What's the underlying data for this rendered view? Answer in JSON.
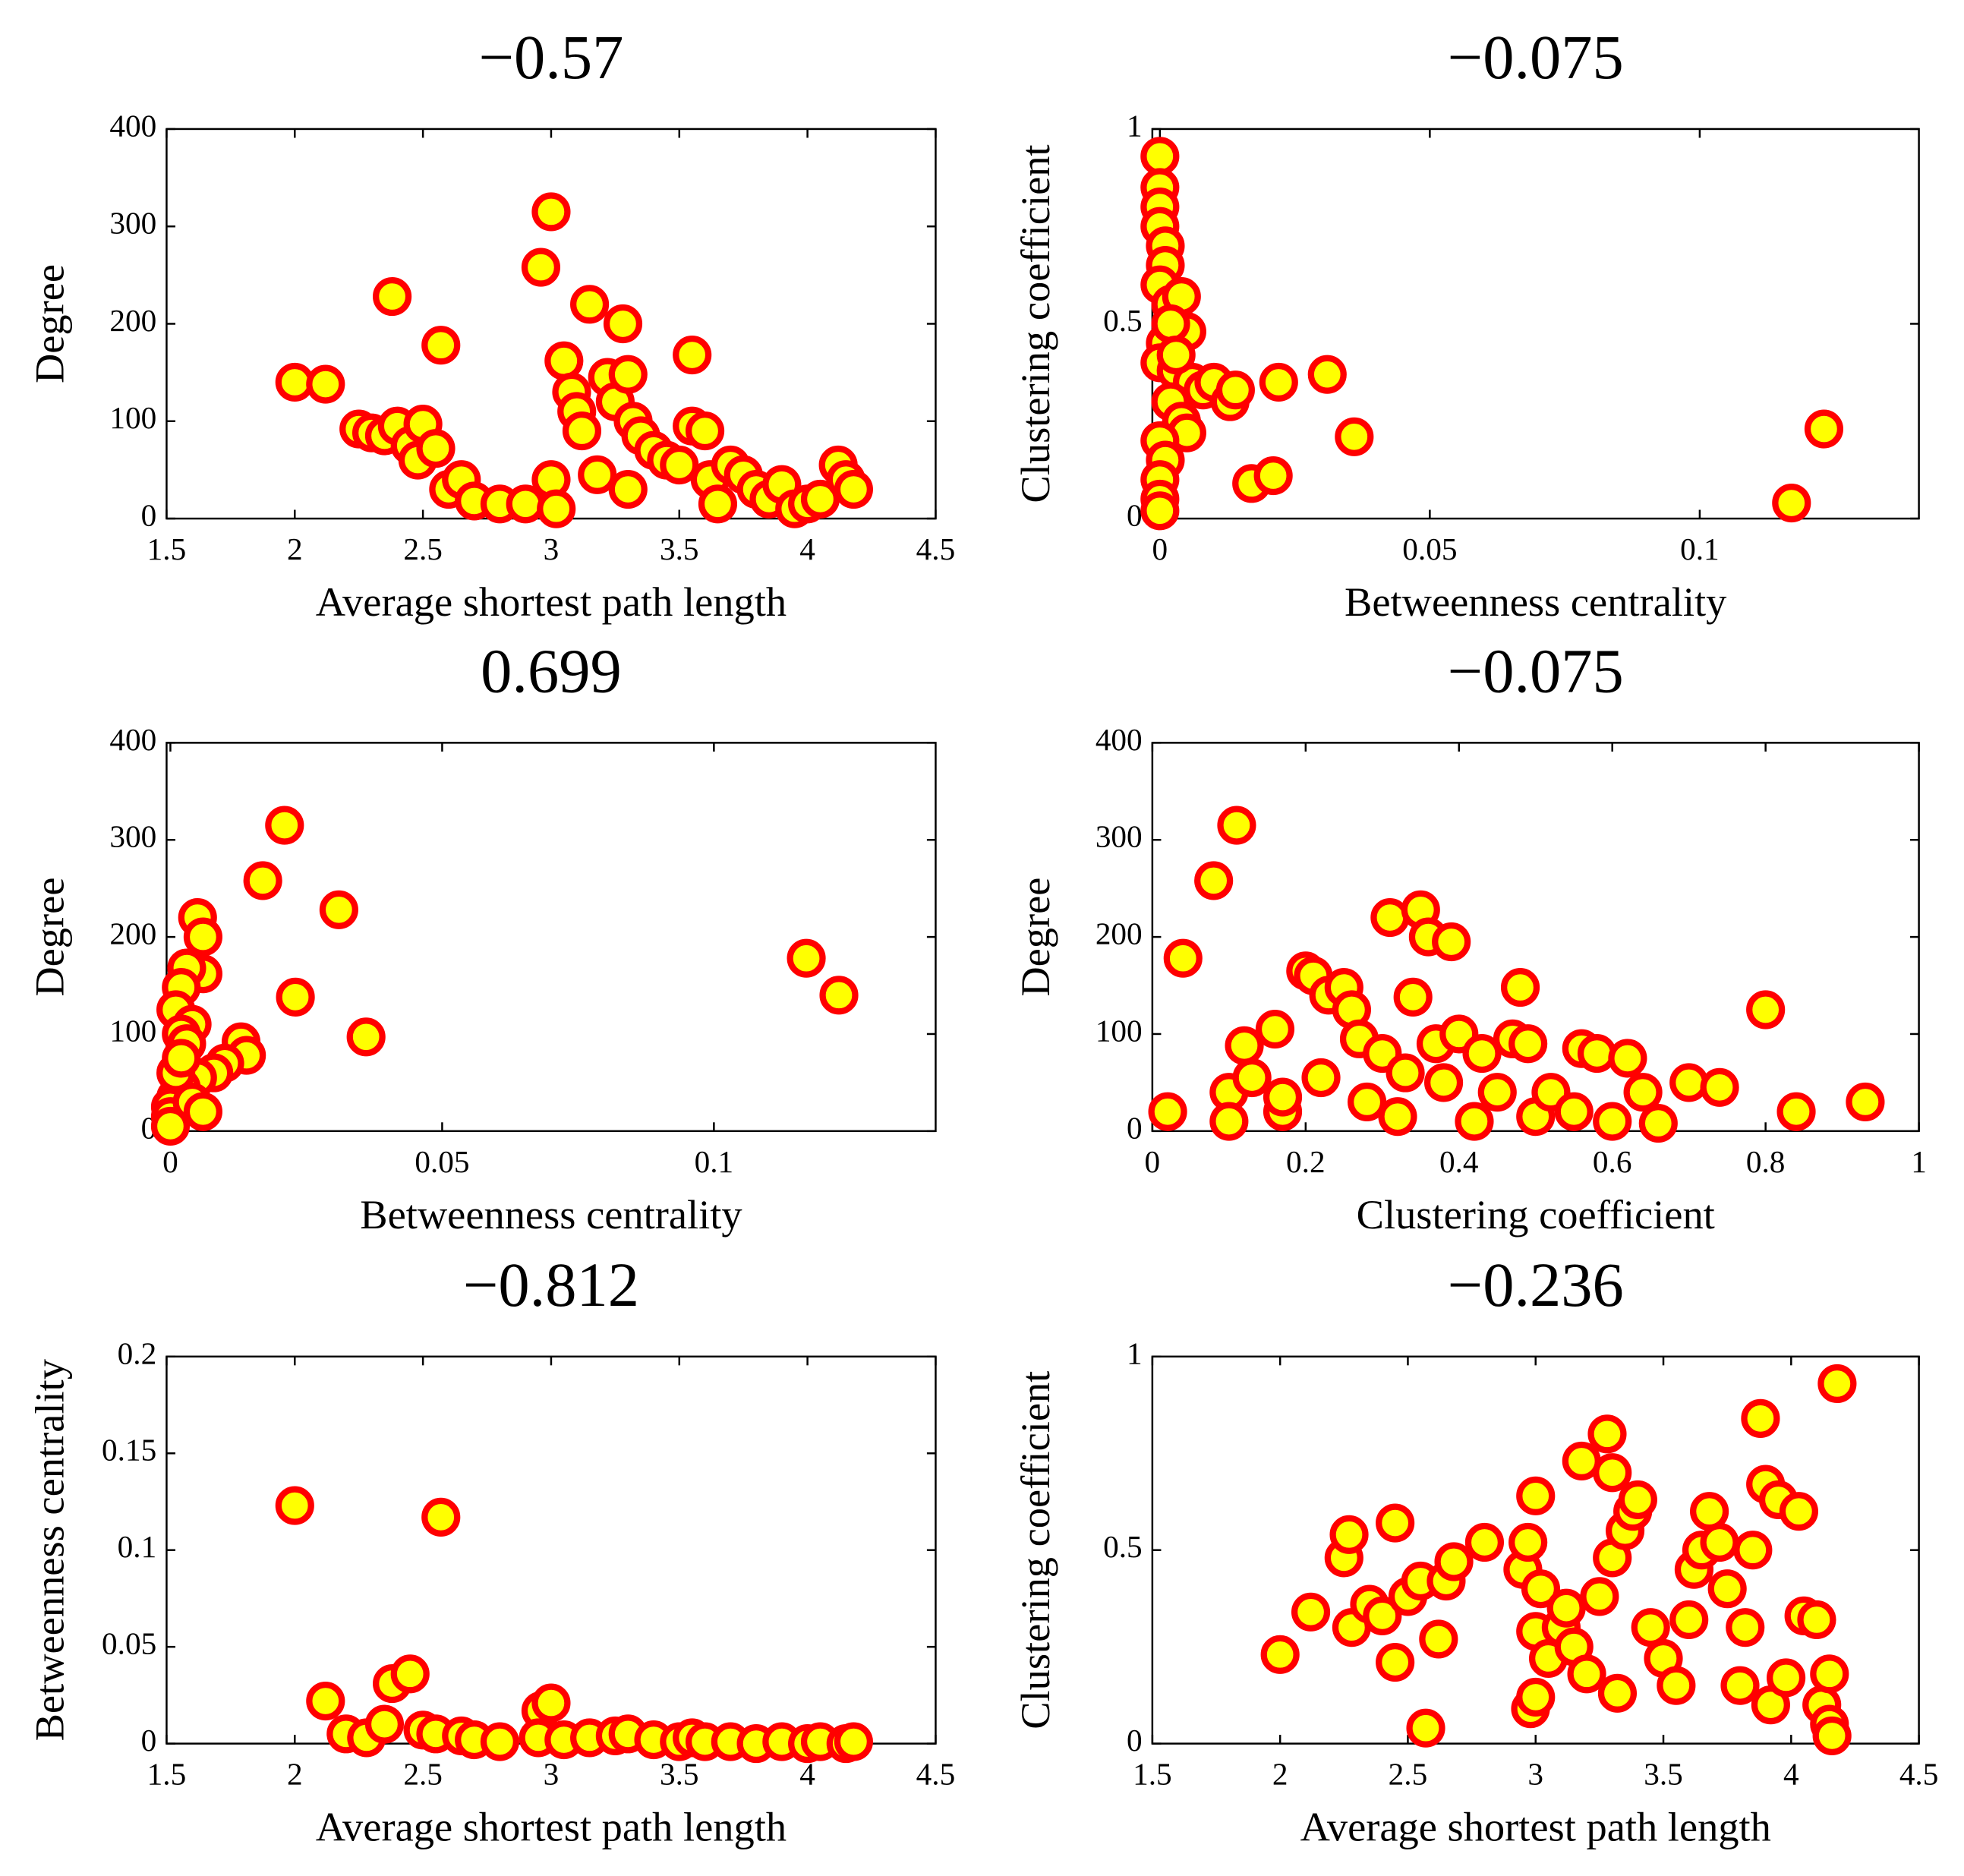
{
  "chart_data": [
    {
      "type": "scatter",
      "title": "−0.57",
      "x_label": "Average shortest path length",
      "y_label": "Degree",
      "marker_color": "#ffff00",
      "edge_color": "#ff0000",
      "xlim": [
        1.5,
        4.5
      ],
      "xticks": [
        1.5,
        2,
        2.5,
        3,
        3.5,
        4,
        4.5
      ],
      "ylim": [
        0,
        400
      ],
      "yticks": [
        0,
        100,
        200,
        300,
        400
      ],
      "x": [
        2.0,
        2.12,
        2.38,
        2.57,
        2.25,
        2.3,
        2.35,
        2.4,
        2.45,
        2.5,
        2.48,
        2.55,
        2.6,
        2.65,
        2.7,
        2.8,
        2.9,
        2.96,
        3.0,
        3.0,
        3.02,
        3.05,
        3.08,
        3.1,
        3.12,
        3.15,
        3.18,
        3.22,
        3.25,
        3.28,
        3.3,
        3.3,
        3.32,
        3.35,
        3.4,
        3.45,
        3.5,
        3.55,
        3.55,
        3.6,
        3.62,
        3.65,
        3.7,
        3.75,
        3.8,
        3.85,
        3.9,
        3.95,
        4.0,
        4.05,
        4.12,
        4.15,
        4.18
      ],
      "values": [
        140,
        138,
        228,
        178,
        92,
        88,
        85,
        95,
        75,
        97,
        60,
        72,
        30,
        40,
        18,
        15,
        15,
        258,
        315,
        40,
        10,
        162,
        130,
        110,
        90,
        220,
        45,
        145,
        120,
        200,
        148,
        30,
        100,
        85,
        70,
        60,
        55,
        168,
        95,
        90,
        40,
        15,
        55,
        45,
        30,
        20,
        35,
        10,
        15,
        20,
        55,
        40,
        30
      ]
    },
    {
      "type": "scatter",
      "title": "−0.075",
      "x_label": "Betweenness centrality",
      "y_label": "Clustering coefficient",
      "marker_color": "#ffff00",
      "edge_color": "#ff0000",
      "xlim": [
        -0.0014,
        0.1406
      ],
      "xticks": [
        0,
        0.05,
        0.1
      ],
      "ylim": [
        0,
        1
      ],
      "yticks": [
        0,
        0.5,
        1
      ],
      "x": [
        0,
        0,
        0,
        0,
        0.001,
        0.001,
        0,
        0.002,
        0.004,
        0.005,
        0.001,
        0,
        0.003,
        0.006,
        0.008,
        0.01,
        0.013,
        0.014,
        0.002,
        0.004,
        0.005,
        0,
        0.001,
        0,
        0,
        0,
        0.017,
        0.021,
        0.022,
        0.031,
        0.036,
        0.117,
        0.123,
        0.002,
        0.003
      ],
      "values": [
        0.93,
        0.85,
        0.8,
        0.75,
        0.7,
        0.65,
        0.6,
        0.55,
        0.57,
        0.48,
        0.45,
        0.4,
        0.38,
        0.35,
        0.33,
        0.35,
        0.3,
        0.33,
        0.3,
        0.25,
        0.22,
        0.2,
        0.15,
        0.1,
        0.05,
        0.02,
        0.09,
        0.11,
        0.35,
        0.37,
        0.21,
        0.04,
        0.23,
        0.5,
        0.42
      ]
    },
    {
      "type": "scatter",
      "title": "0.699",
      "x_label": "Betweenness centrality",
      "y_label": "Degree",
      "marker_color": "#ffff00",
      "edge_color": "#ff0000",
      "xlim": [
        -0.0007,
        0.1408
      ],
      "xticks": [
        0,
        0.05,
        0.1
      ],
      "ylim": [
        0,
        400
      ],
      "yticks": [
        0,
        100,
        200,
        300,
        400
      ],
      "x": [
        0.021,
        0.017,
        0.031,
        0.023,
        0.036,
        0.117,
        0.123,
        0.005,
        0.006,
        0.006,
        0.003,
        0.002,
        0.001,
        0.004,
        0.002,
        0.003,
        0.013,
        0.014,
        0.01,
        0.008,
        0.005,
        0.002,
        0.001,
        0,
        0,
        0,
        0.001,
        0.004,
        0.002,
        0.006
      ],
      "values": [
        315,
        258,
        228,
        138,
        97,
        178,
        140,
        220,
        200,
        162,
        168,
        148,
        125,
        110,
        100,
        90,
        92,
        78,
        70,
        60,
        55,
        45,
        35,
        25,
        15,
        5,
        60,
        30,
        75,
        20
      ]
    },
    {
      "type": "scatter",
      "title": "−0.075",
      "x_label": "Clustering coefficient",
      "y_label": "Degree",
      "marker_color": "#ffff00",
      "edge_color": "#ff0000",
      "xlim": [
        0,
        1
      ],
      "xticks": [
        0,
        0.2,
        0.4,
        0.6,
        0.8,
        1
      ],
      "ylim": [
        0,
        400
      ],
      "yticks": [
        0,
        100,
        200,
        300,
        400
      ],
      "x": [
        0.02,
        0.04,
        0.08,
        0.11,
        0.1,
        0.1,
        0.12,
        0.13,
        0.16,
        0.17,
        0.17,
        0.2,
        0.21,
        0.22,
        0.23,
        0.25,
        0.26,
        0.27,
        0.28,
        0.3,
        0.31,
        0.32,
        0.33,
        0.34,
        0.35,
        0.36,
        0.37,
        0.38,
        0.39,
        0.4,
        0.42,
        0.43,
        0.45,
        0.47,
        0.48,
        0.49,
        0.5,
        0.52,
        0.55,
        0.56,
        0.58,
        0.6,
        0.62,
        0.64,
        0.66,
        0.7,
        0.74,
        0.8,
        0.84,
        0.93
      ],
      "values": [
        20,
        178,
        258,
        315,
        40,
        10,
        88,
        55,
        105,
        20,
        35,
        165,
        160,
        55,
        140,
        148,
        125,
        95,
        30,
        80,
        220,
        15,
        60,
        138,
        228,
        200,
        90,
        50,
        195,
        100,
        10,
        80,
        40,
        95,
        148,
        90,
        15,
        40,
        20,
        85,
        80,
        10,
        75,
        40,
        8,
        50,
        45,
        125,
        20,
        30
      ]
    },
    {
      "type": "scatter",
      "title": "−0.812",
      "x_label": "Average shortest path length",
      "y_label": "Betweenness centrality",
      "marker_color": "#ffff00",
      "edge_color": "#ff0000",
      "xlim": [
        1.5,
        4.5
      ],
      "xticks": [
        1.5,
        2,
        2.5,
        3,
        3.5,
        4,
        4.5
      ],
      "ylim": [
        0,
        0.2
      ],
      "yticks": [
        0,
        0.05,
        0.1,
        0.15,
        0.2
      ],
      "x": [
        2.0,
        2.57,
        2.12,
        2.38,
        2.45,
        2.2,
        2.28,
        2.35,
        2.5,
        2.55,
        2.65,
        2.7,
        2.8,
        2.96,
        3.0,
        2.95,
        3.05,
        3.15,
        3.25,
        3.3,
        3.4,
        3.5,
        3.55,
        3.6,
        3.7,
        3.8,
        3.9,
        4.0,
        4.05,
        4.15,
        4.18
      ],
      "values": [
        0.123,
        0.117,
        0.022,
        0.031,
        0.036,
        0.005,
        0.003,
        0.01,
        0.007,
        0.005,
        0.004,
        0.002,
        0.001,
        0.017,
        0.021,
        0.003,
        0.002,
        0.003,
        0.004,
        0.005,
        0.002,
        0.001,
        0.003,
        0.001,
        0.001,
        0,
        0.001,
        0,
        0.001,
        0,
        0.001
      ]
    },
    {
      "type": "scatter",
      "title": "−0.236",
      "x_label": "Average shortest path length",
      "y_label": "Clustering coefficient",
      "marker_color": "#ffff00",
      "edge_color": "#ff0000",
      "xlim": [
        1.5,
        4.5
      ],
      "xticks": [
        1.5,
        2,
        2.5,
        3,
        3.5,
        4,
        4.5
      ],
      "ylim": [
        0,
        1
      ],
      "yticks": [
        0,
        0.5,
        1
      ],
      "x": [
        2.0,
        2.12,
        2.25,
        2.27,
        2.28,
        2.35,
        2.4,
        2.45,
        2.45,
        2.5,
        2.57,
        2.55,
        2.62,
        2.65,
        2.68,
        2.8,
        2.95,
        2.97,
        3.0,
        2.98,
        3.0,
        3.0,
        3.02,
        3.05,
        3.1,
        3.12,
        3.15,
        3.18,
        3.2,
        3.25,
        3.28,
        3.3,
        3.3,
        3.32,
        3.35,
        3.38,
        3.4,
        3.45,
        3.5,
        3.55,
        3.6,
        3.62,
        3.65,
        3.68,
        3.72,
        3.75,
        3.8,
        3.82,
        3.85,
        3.88,
        3.9,
        3.92,
        3.95,
        3.98,
        4.03,
        4.05,
        4.1,
        4.12,
        4.15,
        4.15,
        4.16,
        4.18
      ],
      "values": [
        0.23,
        0.34,
        0.48,
        0.54,
        0.3,
        0.36,
        0.33,
        0.57,
        0.21,
        0.38,
        0.04,
        0.42,
        0.27,
        0.42,
        0.47,
        0.52,
        0.45,
        0.52,
        0.64,
        0.09,
        0.12,
        0.29,
        0.4,
        0.22,
        0.3,
        0.35,
        0.25,
        0.73,
        0.18,
        0.38,
        0.8,
        0.7,
        0.48,
        0.13,
        0.55,
        0.6,
        0.63,
        0.3,
        0.22,
        0.15,
        0.32,
        0.45,
        0.5,
        0.6,
        0.52,
        0.4,
        0.15,
        0.3,
        0.5,
        0.84,
        0.67,
        0.1,
        0.63,
        0.17,
        0.6,
        0.33,
        0.32,
        0.1,
        0.18,
        0.05,
        0.02,
        0.93
      ]
    }
  ]
}
